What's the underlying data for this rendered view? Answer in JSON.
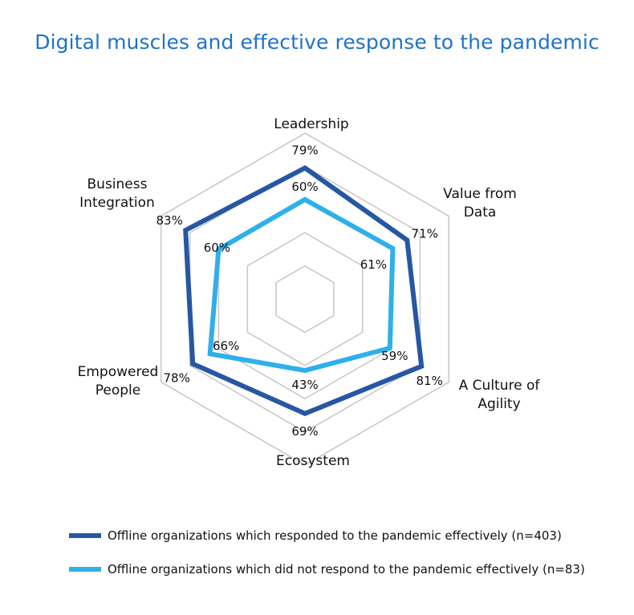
{
  "title": "Digital muscles and effective response to the pandemic",
  "colors": {
    "series_1": "#2757a3",
    "series_2": "#2eb0ea",
    "grid": "#c9c9c9",
    "title": "#1f73c8"
  },
  "chart_data": {
    "type": "radar",
    "title": "Digital muscles and effective response to the pandemic",
    "categories": [
      "Leadership",
      "Value from Data",
      "A Culture of Agility",
      "Ecosystem",
      "Empowered People",
      "Business Integration"
    ],
    "category_label_lines": [
      [
        "Leadership"
      ],
      [
        "Value from",
        "Data"
      ],
      [
        "A Culture of",
        "Agility"
      ],
      [
        "Ecosystem"
      ],
      [
        "Empowered",
        "People"
      ],
      [
        "Business",
        "Integration"
      ]
    ],
    "rlim": [
      0,
      100
    ],
    "grid": true,
    "legend_position": "bottom",
    "series": [
      {
        "name": "Offline organizations which responded to the pandemic effectively (n=403)",
        "values": [
          79,
          71,
          81,
          69,
          78,
          83
        ],
        "labels": [
          "79%",
          "71%",
          "81%",
          "69%",
          "78%",
          "83%"
        ]
      },
      {
        "name": "Offline organizations which did not respond to the pandemic effectively (n=83)",
        "values": [
          60,
          61,
          59,
          43,
          66,
          60
        ],
        "labels": [
          "60%",
          "61%",
          "59%",
          "43%",
          "66%",
          "60%"
        ]
      }
    ]
  },
  "legend": {
    "items": [
      "Offline organizations which responded to the pandemic effectively (n=403)",
      "Offline organizations which did not respond to the pandemic effectively (n=83)"
    ]
  }
}
